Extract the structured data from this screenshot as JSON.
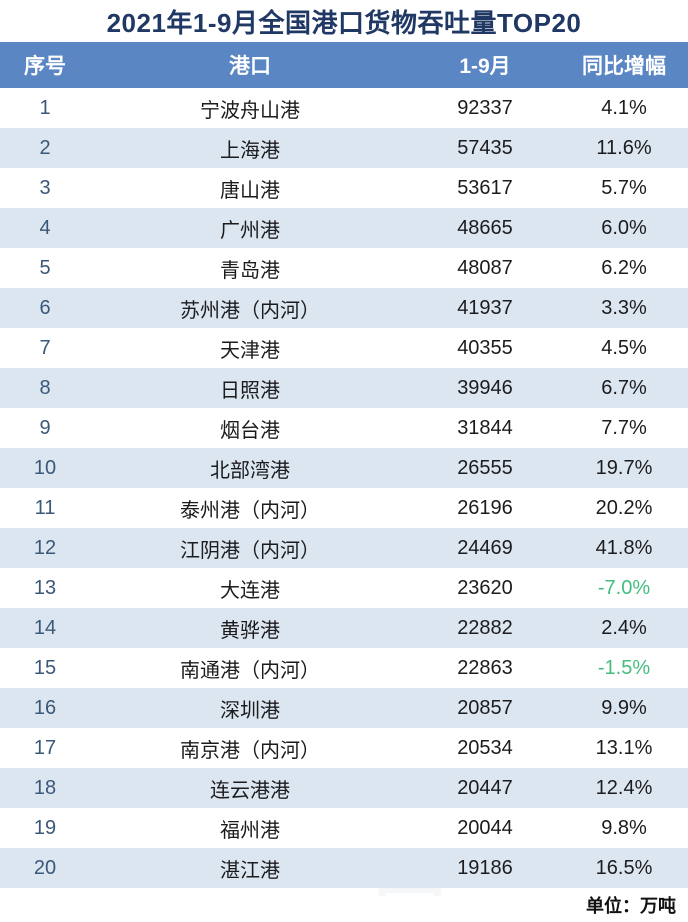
{
  "title": "2021年1-9月全国港口货物吞吐量TOP20",
  "unit_note": "单位：万吨",
  "watermark": "港口圈",
  "colors": {
    "header_bg": "#5a86c4",
    "alt_row_bg": "#dce6f1",
    "title_text": "#1f3864",
    "rank_text": "#3a5878",
    "body_text": "#1c1c1e",
    "negative_growth": "#45bd7e"
  },
  "table": {
    "headers": [
      "序号",
      "港口",
      "1-9月",
      "同比增幅"
    ],
    "rows": [
      {
        "rank": "1",
        "port": "宁波舟山港",
        "value": "92337",
        "growth": "4.1%",
        "negative": false
      },
      {
        "rank": "2",
        "port": "上海港",
        "value": "57435",
        "growth": "11.6%",
        "negative": false
      },
      {
        "rank": "3",
        "port": "唐山港",
        "value": "53617",
        "growth": "5.7%",
        "negative": false
      },
      {
        "rank": "4",
        "port": "广州港",
        "value": "48665",
        "growth": "6.0%",
        "negative": false
      },
      {
        "rank": "5",
        "port": "青岛港",
        "value": "48087",
        "growth": "6.2%",
        "negative": false
      },
      {
        "rank": "6",
        "port": "苏州港（内河）",
        "value": "41937",
        "growth": "3.3%",
        "negative": false
      },
      {
        "rank": "7",
        "port": "天津港",
        "value": "40355",
        "growth": "4.5%",
        "negative": false
      },
      {
        "rank": "8",
        "port": "日照港",
        "value": "39946",
        "growth": "6.7%",
        "negative": false
      },
      {
        "rank": "9",
        "port": "烟台港",
        "value": "31844",
        "growth": "7.7%",
        "negative": false
      },
      {
        "rank": "10",
        "port": "北部湾港",
        "value": "26555",
        "growth": "19.7%",
        "negative": false
      },
      {
        "rank": "11",
        "port": "泰州港（内河）",
        "value": "26196",
        "growth": "20.2%",
        "negative": false
      },
      {
        "rank": "12",
        "port": "江阴港（内河）",
        "value": "24469",
        "growth": "41.8%",
        "negative": false
      },
      {
        "rank": "13",
        "port": "大连港",
        "value": "23620",
        "growth": "-7.0%",
        "negative": true
      },
      {
        "rank": "14",
        "port": "黄骅港",
        "value": "22882",
        "growth": "2.4%",
        "negative": false
      },
      {
        "rank": "15",
        "port": "南通港（内河）",
        "value": "22863",
        "growth": "-1.5%",
        "negative": true
      },
      {
        "rank": "16",
        "port": "深圳港",
        "value": "20857",
        "growth": "9.9%",
        "negative": false
      },
      {
        "rank": "17",
        "port": "南京港（内河）",
        "value": "20534",
        "growth": "13.1%",
        "negative": false
      },
      {
        "rank": "18",
        "port": "连云港港",
        "value": "20447",
        "growth": "12.4%",
        "negative": false
      },
      {
        "rank": "19",
        "port": "福州港",
        "value": "20044",
        "growth": "9.8%",
        "negative": false
      },
      {
        "rank": "20",
        "port": "湛江港",
        "value": "19186",
        "growth": "16.5%",
        "negative": false
      }
    ]
  },
  "chart_data": {
    "type": "table",
    "title": "2021年1-9月全国港口货物吞吐量TOP20",
    "columns": [
      "序号",
      "港口",
      "1-9月",
      "同比增幅"
    ],
    "unit": "万吨",
    "categories": [
      "宁波舟山港",
      "上海港",
      "唐山港",
      "广州港",
      "青岛港",
      "苏州港（内河）",
      "天津港",
      "日照港",
      "烟台港",
      "北部湾港",
      "泰州港（内河）",
      "江阴港（内河）",
      "大连港",
      "黄骅港",
      "南通港（内河）",
      "深圳港",
      "南京港（内河）",
      "连云港港",
      "福州港",
      "湛江港"
    ],
    "series": [
      {
        "name": "1-9月吞吐量(万吨)",
        "values": [
          92337,
          57435,
          53617,
          48665,
          48087,
          41937,
          40355,
          39946,
          31844,
          26555,
          26196,
          24469,
          23620,
          22882,
          22863,
          20857,
          20534,
          20447,
          20044,
          19186
        ]
      },
      {
        "name": "同比增幅(%)",
        "values": [
          4.1,
          11.6,
          5.7,
          6.0,
          6.2,
          3.3,
          4.5,
          6.7,
          7.7,
          19.7,
          20.2,
          41.8,
          -7.0,
          2.4,
          -1.5,
          9.9,
          13.1,
          12.4,
          9.8,
          16.5
        ]
      }
    ]
  }
}
